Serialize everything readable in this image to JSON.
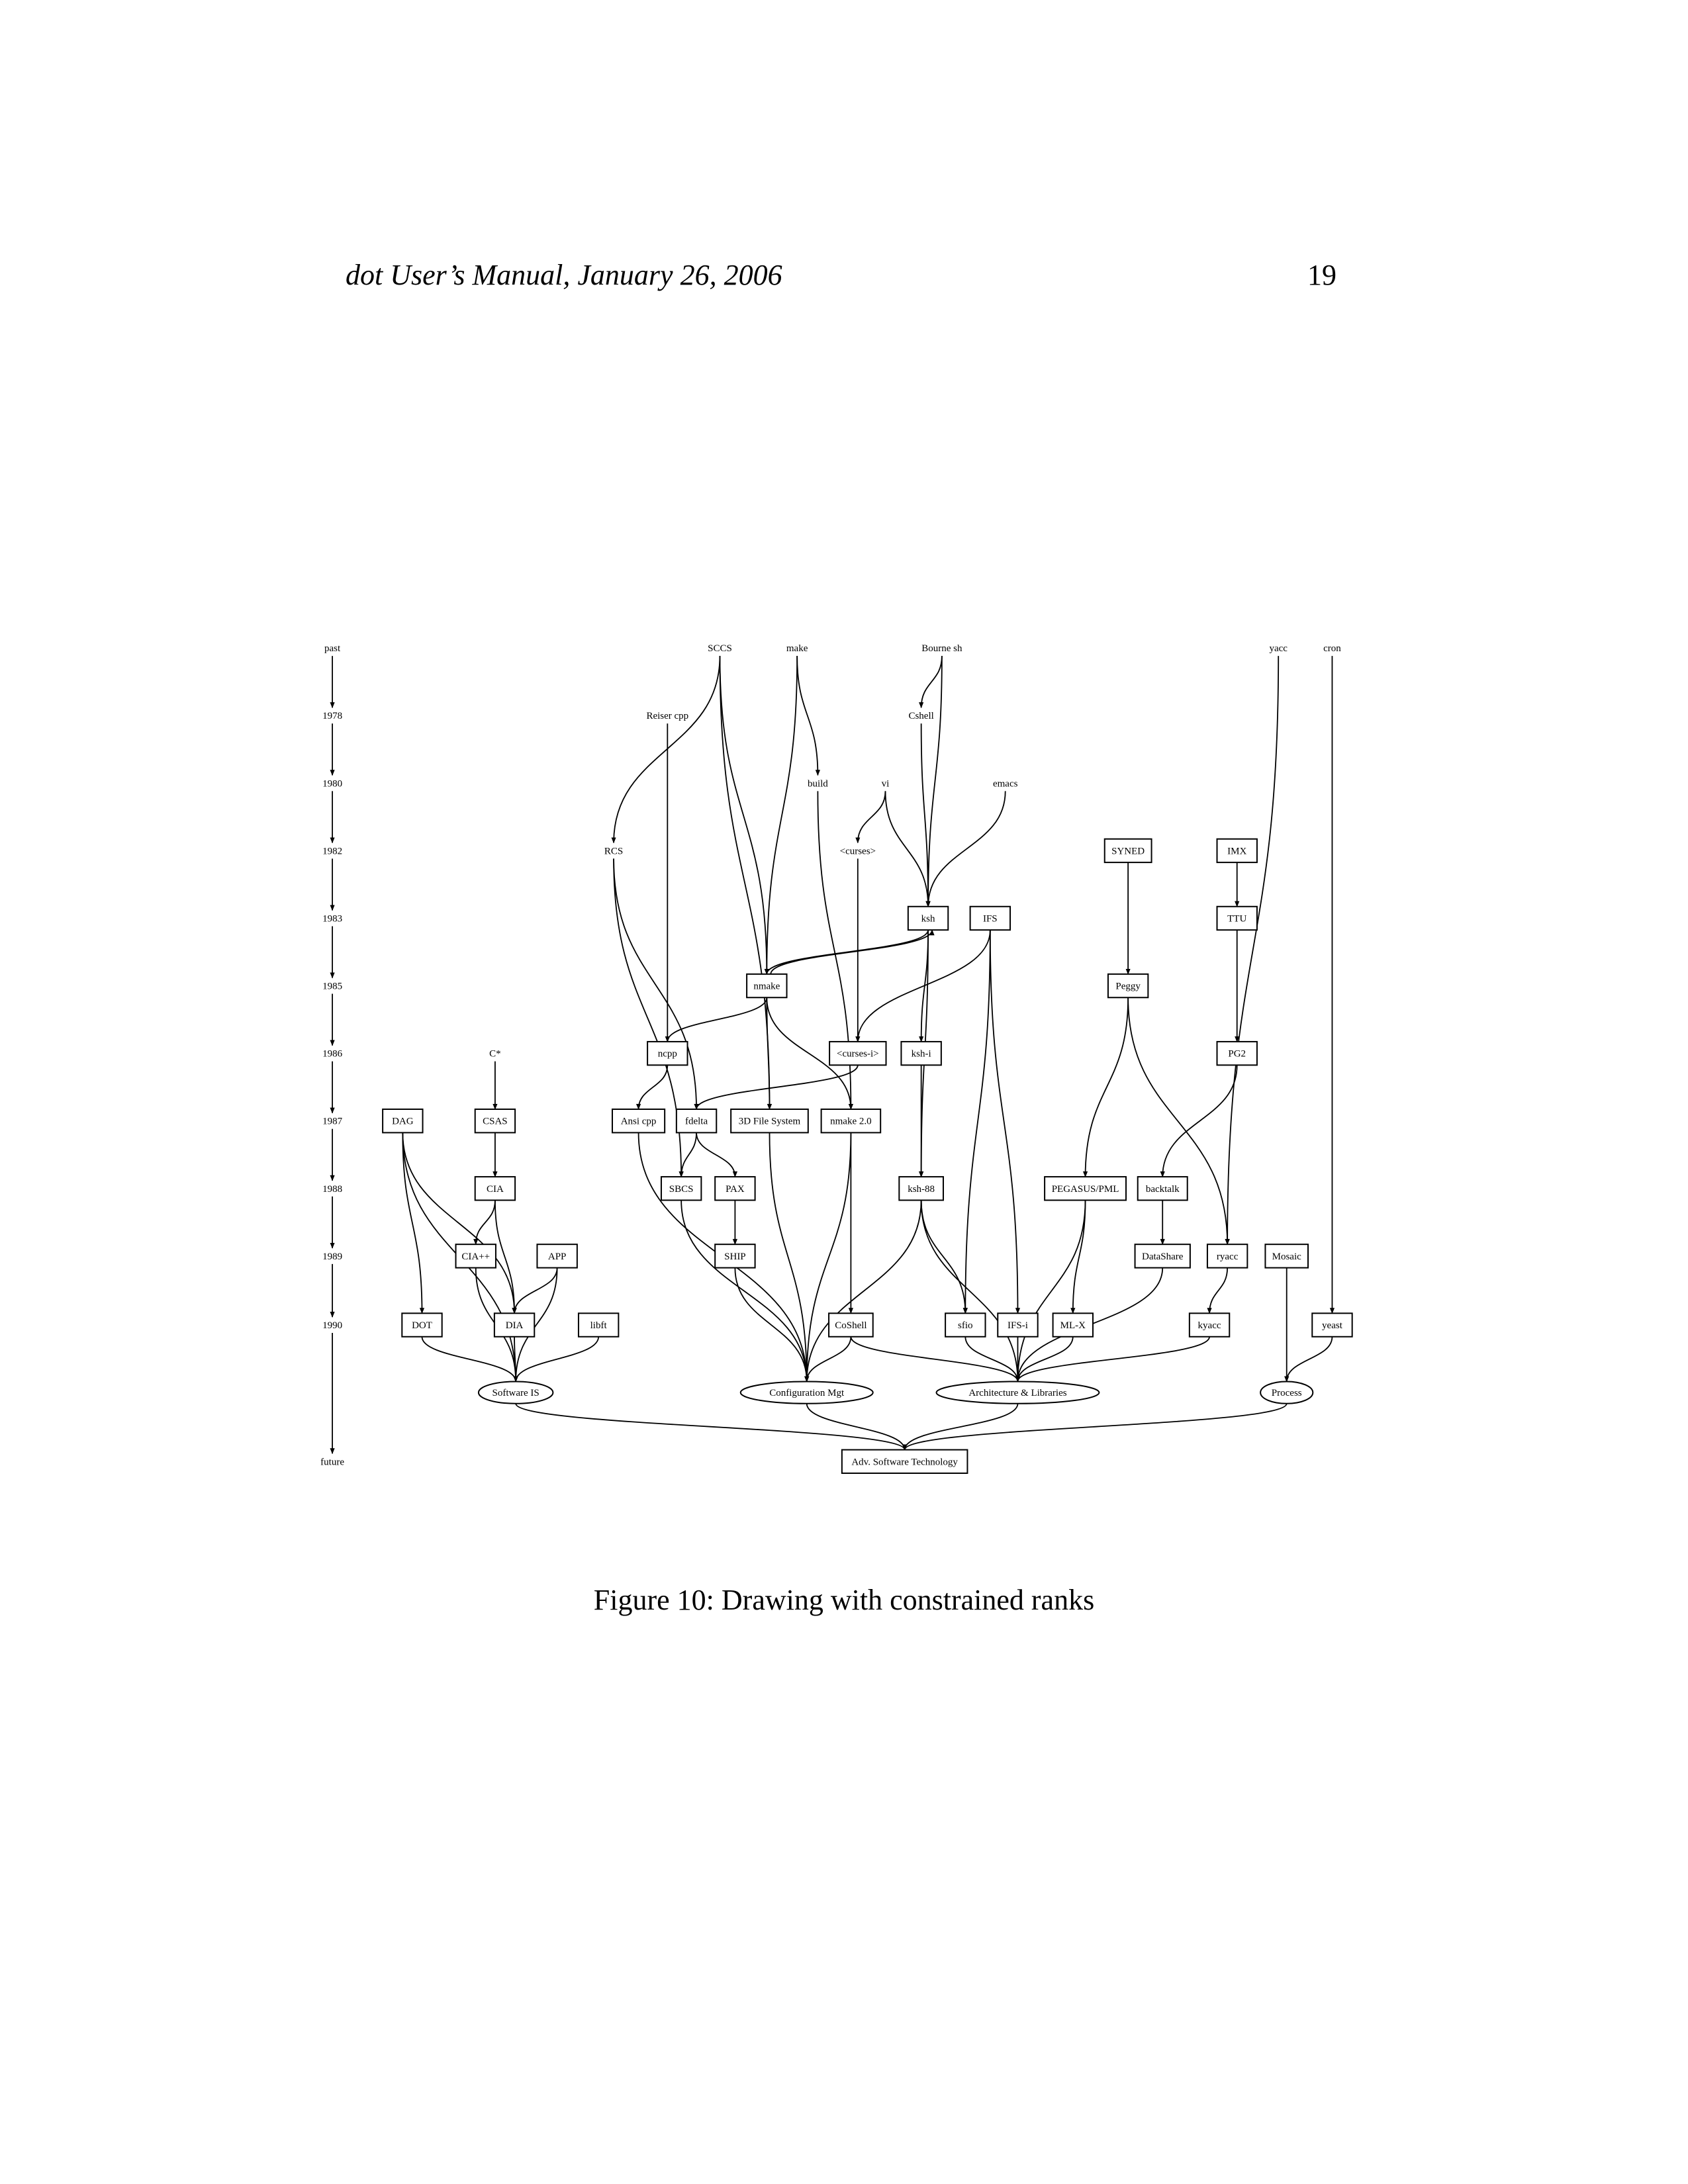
{
  "page": {
    "header_title": "dot User’s Manual, January 26, 2006",
    "page_number": "19",
    "caption": "Figure 10: Drawing with constrained ranks"
  },
  "graph": {
    "ranks": [
      "past",
      "1978",
      "1980",
      "1982",
      "1983",
      "1985",
      "1986",
      "1987",
      "1988",
      "1989",
      "1990",
      "future"
    ],
    "nodes": [
      {
        "id": "SCCS",
        "label": "SCCS",
        "shape": "plaintext"
      },
      {
        "id": "make",
        "label": "make",
        "shape": "plaintext"
      },
      {
        "id": "Bourne sh",
        "label": "Bourne sh",
        "shape": "plaintext"
      },
      {
        "id": "yacc",
        "label": "yacc",
        "shape": "plaintext"
      },
      {
        "id": "cron",
        "label": "cron",
        "shape": "plaintext"
      },
      {
        "id": "Reiser cpp",
        "label": "Reiser cpp",
        "shape": "plaintext"
      },
      {
        "id": "Cshell",
        "label": "Cshell",
        "shape": "plaintext"
      },
      {
        "id": "build",
        "label": "build",
        "shape": "plaintext"
      },
      {
        "id": "vi",
        "label": "vi",
        "shape": "plaintext"
      },
      {
        "id": "emacs",
        "label": "emacs",
        "shape": "plaintext"
      },
      {
        "id": "RCS",
        "label": "RCS",
        "shape": "plaintext"
      },
      {
        "id": "<curses>",
        "label": "<curses>",
        "shape": "plaintext"
      },
      {
        "id": "SYNED",
        "label": "SYNED",
        "shape": "box"
      },
      {
        "id": "IMX",
        "label": "IMX",
        "shape": "box"
      },
      {
        "id": "ksh",
        "label": "ksh",
        "shape": "box"
      },
      {
        "id": "IFS",
        "label": "IFS",
        "shape": "box"
      },
      {
        "id": "TTU",
        "label": "TTU",
        "shape": "box"
      },
      {
        "id": "nmake",
        "label": "nmake",
        "shape": "box"
      },
      {
        "id": "Peggy",
        "label": "Peggy",
        "shape": "box"
      },
      {
        "id": "C*",
        "label": "C*",
        "shape": "plaintext"
      },
      {
        "id": "ncpp",
        "label": "ncpp",
        "shape": "box"
      },
      {
        "id": "<curses-i>",
        "label": "<curses-i>",
        "shape": "box"
      },
      {
        "id": "ksh-i",
        "label": "ksh-i",
        "shape": "box"
      },
      {
        "id": "PG2",
        "label": "PG2",
        "shape": "box"
      },
      {
        "id": "DAG",
        "label": "DAG",
        "shape": "box"
      },
      {
        "id": "CSAS",
        "label": "CSAS",
        "shape": "box"
      },
      {
        "id": "Ansi cpp",
        "label": "Ansi cpp",
        "shape": "box"
      },
      {
        "id": "fdelta",
        "label": "fdelta",
        "shape": "box"
      },
      {
        "id": "3D File System",
        "label": "3D File System",
        "shape": "box"
      },
      {
        "id": "nmake 2.0",
        "label": "nmake 2.0",
        "shape": "box"
      },
      {
        "id": "CIA",
        "label": "CIA",
        "shape": "box"
      },
      {
        "id": "SBCS",
        "label": "SBCS",
        "shape": "box"
      },
      {
        "id": "PAX",
        "label": "PAX",
        "shape": "box"
      },
      {
        "id": "ksh-88",
        "label": "ksh-88",
        "shape": "box"
      },
      {
        "id": "PEGASUS/PML",
        "label": "PEGASUS/PML",
        "shape": "box"
      },
      {
        "id": "backtalk",
        "label": "backtalk",
        "shape": "box"
      },
      {
        "id": "CIA++",
        "label": "CIA++",
        "shape": "box"
      },
      {
        "id": "APP",
        "label": "APP",
        "shape": "box"
      },
      {
        "id": "SHIP",
        "label": "SHIP",
        "shape": "box"
      },
      {
        "id": "DataShare",
        "label": "DataShare",
        "shape": "box"
      },
      {
        "id": "ryacc",
        "label": "ryacc",
        "shape": "box"
      },
      {
        "id": "Mosaic",
        "label": "Mosaic",
        "shape": "box"
      },
      {
        "id": "DOT",
        "label": "DOT",
        "shape": "box"
      },
      {
        "id": "DIA",
        "label": "DIA",
        "shape": "box"
      },
      {
        "id": "libft",
        "label": "libft",
        "shape": "box"
      },
      {
        "id": "CoShell",
        "label": "CoShell",
        "shape": "box"
      },
      {
        "id": "sfio",
        "label": "sfio",
        "shape": "box"
      },
      {
        "id": "IFS-i",
        "label": "IFS-i",
        "shape": "box"
      },
      {
        "id": "ML-X",
        "label": "ML-X",
        "shape": "box"
      },
      {
        "id": "kyacc",
        "label": "kyacc",
        "shape": "box"
      },
      {
        "id": "yeast",
        "label": "yeast",
        "shape": "box"
      },
      {
        "id": "Software IS",
        "label": "Software IS",
        "shape": "ellipse"
      },
      {
        "id": "Configuration Mgt",
        "label": "Configuration Mgt",
        "shape": "ellipse"
      },
      {
        "id": "Architecture & Libraries",
        "label": "Architecture & Libraries",
        "shape": "ellipse"
      },
      {
        "id": "Process",
        "label": "Process",
        "shape": "ellipse"
      },
      {
        "id": "Adv. Software Technology",
        "label": "Adv. Software Technology",
        "shape": "box"
      }
    ],
    "edges": [
      [
        "past",
        "1978"
      ],
      [
        "1978",
        "1980"
      ],
      [
        "1980",
        "1982"
      ],
      [
        "1982",
        "1983"
      ],
      [
        "1983",
        "1985"
      ],
      [
        "1985",
        "1986"
      ],
      [
        "1986",
        "1987"
      ],
      [
        "1987",
        "1988"
      ],
      [
        "1988",
        "1989"
      ],
      [
        "1989",
        "1990"
      ],
      [
        "1990",
        "future"
      ],
      [
        "SCCS",
        "RCS"
      ],
      [
        "SCCS",
        "nmake"
      ],
      [
        "SCCS",
        "3D File System"
      ],
      [
        "make",
        "nmake"
      ],
      [
        "make",
        "build"
      ],
      [
        "Bourne sh",
        "Cshell"
      ],
      [
        "Bourne sh",
        "ksh"
      ],
      [
        "yacc",
        "ryacc"
      ],
      [
        "cron",
        "yeast"
      ],
      [
        "Reiser cpp",
        "ncpp"
      ],
      [
        "Cshell",
        "ksh"
      ],
      [
        "build",
        "nmake 2.0"
      ],
      [
        "vi",
        "<curses>"
      ],
      [
        "vi",
        "ksh"
      ],
      [
        "emacs",
        "ksh"
      ],
      [
        "RCS",
        "SBCS"
      ],
      [
        "RCS",
        "fdelta"
      ],
      [
        "<curses>",
        "<curses-i>"
      ],
      [
        "SYNED",
        "Peggy"
      ],
      [
        "IMX",
        "TTU"
      ],
      [
        "ksh",
        "nmake"
      ],
      [
        "ksh",
        "ksh-i"
      ],
      [
        "ksh",
        "ksh-88"
      ],
      [
        "IFS",
        "<curses-i>"
      ],
      [
        "IFS",
        "sfio"
      ],
      [
        "IFS",
        "IFS-i"
      ],
      [
        "TTU",
        "PG2"
      ],
      [
        "nmake",
        "ksh"
      ],
      [
        "nmake",
        "ncpp"
      ],
      [
        "nmake",
        "3D File System"
      ],
      [
        "nmake",
        "nmake 2.0"
      ],
      [
        "Peggy",
        "PEGASUS/PML"
      ],
      [
        "Peggy",
        "ryacc"
      ],
      [
        "C*",
        "CSAS"
      ],
      [
        "ncpp",
        "Ansi cpp"
      ],
      [
        "<curses-i>",
        "fdelta"
      ],
      [
        "ksh-i",
        "ksh-88"
      ],
      [
        "PG2",
        "backtalk"
      ],
      [
        "DAG",
        "Software IS"
      ],
      [
        "DAG",
        "DOT"
      ],
      [
        "DAG",
        "DIA"
      ],
      [
        "CSAS",
        "CIA"
      ],
      [
        "Ansi cpp",
        "Configuration Mgt"
      ],
      [
        "fdelta",
        "SBCS"
      ],
      [
        "fdelta",
        "PAX"
      ],
      [
        "3D File System",
        "Configuration Mgt"
      ],
      [
        "nmake 2.0",
        "Configuration Mgt"
      ],
      [
        "nmake 2.0",
        "CoShell"
      ],
      [
        "CIA",
        "CIA++"
      ],
      [
        "CIA",
        "DIA"
      ],
      [
        "SBCS",
        "Configuration Mgt"
      ],
      [
        "PAX",
        "SHIP"
      ],
      [
        "ksh-88",
        "Configuration Mgt"
      ],
      [
        "ksh-88",
        "Architecture & Libraries"
      ],
      [
        "ksh-88",
        "sfio"
      ],
      [
        "PEGASUS/PML",
        "Architecture & Libraries"
      ],
      [
        "PEGASUS/PML",
        "ML-X"
      ],
      [
        "backtalk",
        "DataShare"
      ],
      [
        "CIA++",
        "Software IS"
      ],
      [
        "APP",
        "DIA"
      ],
      [
        "APP",
        "Software IS"
      ],
      [
        "SHIP",
        "Configuration Mgt"
      ],
      [
        "DataShare",
        "Architecture & Libraries"
      ],
      [
        "ryacc",
        "kyacc"
      ],
      [
        "Mosaic",
        "Process"
      ],
      [
        "DOT",
        "Software IS"
      ],
      [
        "DIA",
        "Software IS"
      ],
      [
        "libft",
        "Software IS"
      ],
      [
        "CoShell",
        "Configuration Mgt"
      ],
      [
        "CoShell",
        "Architecture & Libraries"
      ],
      [
        "sfio",
        "Architecture & Libraries"
      ],
      [
        "IFS-i",
        "Architecture & Libraries"
      ],
      [
        "ML-X",
        "Architecture & Libraries"
      ],
      [
        "kyacc",
        "Architecture & Libraries"
      ],
      [
        "yeast",
        "Process"
      ],
      [
        "Software IS",
        "Adv. Software Technology"
      ],
      [
        "Configuration Mgt",
        "Adv. Software Technology"
      ],
      [
        "Architecture & Libraries",
        "Adv. Software Technology"
      ],
      [
        "Process",
        "Adv. Software Technology"
      ]
    ]
  }
}
